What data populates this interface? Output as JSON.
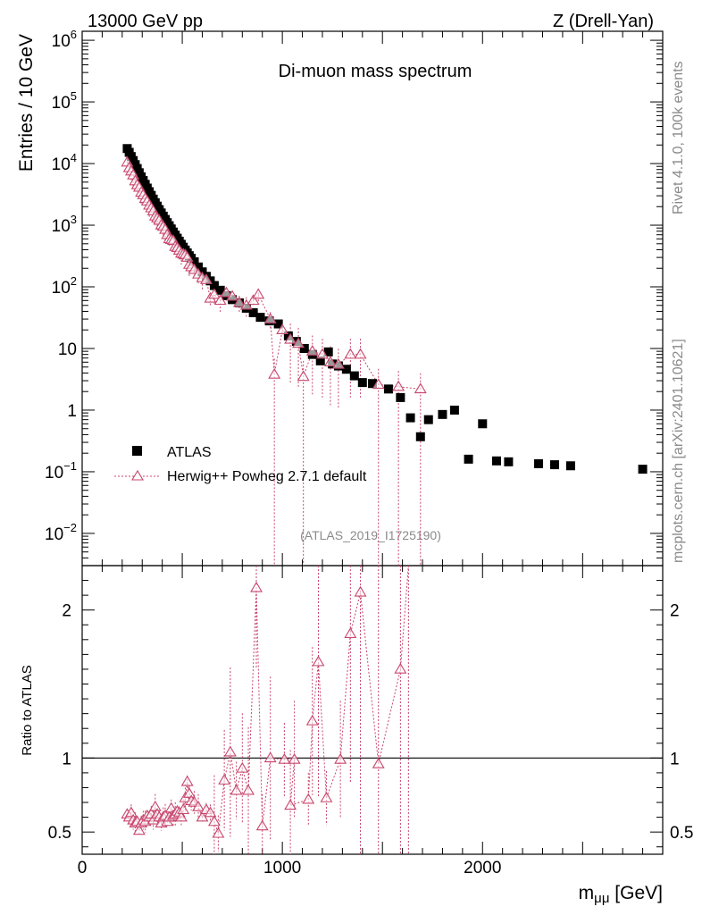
{
  "header": {
    "left": "13000 GeV pp",
    "right": "Z (Drell-Yan)"
  },
  "side_labels": {
    "top": "Rivet 4.1.0,  100k events",
    "bottom": "mcplots.cern.ch [arXiv:2401.10621]"
  },
  "colors": {
    "data": "#000000",
    "mc": "#c8466e",
    "side_text": "#8a8a8a"
  },
  "chart_data": [
    {
      "type": "scatter",
      "title": "Di-muon mass spectrum",
      "ylabel": "Entries / 10 GeV",
      "yscale": "log",
      "xlim": [
        0,
        2900
      ],
      "ylim": [
        0.003,
        1400000
      ],
      "analysis_tag": "(ATLAS_2019_I1725190)",
      "y_tick_labels": [
        "10^6",
        "10^5",
        "10^4",
        "10^3",
        "10^2",
        "10",
        "1",
        "10^-1",
        "10^-2"
      ],
      "legend_position": "center-left",
      "series": [
        {
          "name": "ATLAS",
          "marker": "square",
          "points": [
            [
              225,
              17500
            ],
            [
              235,
              15200
            ],
            [
              245,
              13000
            ],
            [
              255,
              11200
            ],
            [
              265,
              9600
            ],
            [
              275,
              8300
            ],
            [
              285,
              7100
            ],
            [
              295,
              6100
            ],
            [
              305,
              5300
            ],
            [
              315,
              4600
            ],
            [
              325,
              4000
            ],
            [
              335,
              3500
            ],
            [
              345,
              3050
            ],
            [
              355,
              2650
            ],
            [
              365,
              2320
            ],
            [
              375,
              2040
            ],
            [
              385,
              1790
            ],
            [
              395,
              1580
            ],
            [
              405,
              1400
            ],
            [
              415,
              1240
            ],
            [
              425,
              1100
            ],
            [
              435,
              980
            ],
            [
              445,
              870
            ],
            [
              455,
              775
            ],
            [
              465,
              690
            ],
            [
              475,
              615
            ],
            [
              485,
              550
            ],
            [
              495,
              490
            ],
            [
              505,
              440
            ],
            [
              515,
              395
            ],
            [
              525,
              355
            ],
            [
              535,
              320
            ],
            [
              545,
              290
            ],
            [
              560,
              255
            ],
            [
              580,
              210
            ],
            [
              600,
              175
            ],
            [
              620,
              148
            ],
            [
              640,
              125
            ],
            [
              660,
              105
            ],
            [
              690,
              88
            ],
            [
              720,
              72
            ],
            [
              750,
              62
            ],
            [
              785,
              55
            ],
            [
              820,
              45
            ],
            [
              855,
              38
            ],
            [
              890,
              32
            ],
            [
              935,
              28
            ],
            [
              980,
              25
            ],
            [
              1030,
              16
            ],
            [
              1070,
              13
            ],
            [
              1110,
              10
            ],
            [
              1150,
              8
            ],
            [
              1190,
              6.3
            ],
            [
              1230,
              8.8
            ],
            [
              1250,
              5.6
            ],
            [
              1280,
              5.2
            ],
            [
              1320,
              4.6
            ],
            [
              1360,
              3.6
            ],
            [
              1400,
              2.8
            ],
            [
              1450,
              2.7
            ],
            [
              1530,
              2.2
            ],
            [
              1590,
              1.6
            ],
            [
              1640,
              0.75
            ],
            [
              1690,
              0.37
            ],
            [
              1730,
              0.7
            ],
            [
              1800,
              0.85
            ],
            [
              1860,
              1.0
            ],
            [
              1930,
              0.16
            ],
            [
              2000,
              0.6
            ],
            [
              2070,
              0.15
            ],
            [
              2130,
              0.145
            ],
            [
              2280,
              0.135
            ],
            [
              2360,
              0.13
            ],
            [
              2440,
              0.125
            ],
            [
              2800,
              0.11
            ]
          ]
        },
        {
          "name": "Herwig++ Powheg 2.7.1 default",
          "marker": "triangle-open",
          "points": [
            [
              225,
              10500
            ],
            [
              235,
              8500
            ],
            [
              245,
              7500
            ],
            [
              255,
              6500
            ],
            [
              265,
              5200
            ],
            [
              275,
              4500
            ],
            [
              285,
              4100
            ],
            [
              295,
              3400
            ],
            [
              305,
              3100
            ],
            [
              315,
              2700
            ],
            [
              325,
              2450
            ],
            [
              335,
              2100
            ],
            [
              345,
              1900
            ],
            [
              355,
              1700
            ],
            [
              365,
              1400
            ],
            [
              375,
              1300
            ],
            [
              385,
              1200
            ],
            [
              395,
              1000
            ],
            [
              405,
              950
            ],
            [
              415,
              850
            ],
            [
              425,
              700
            ],
            [
              435,
              600
            ],
            [
              445,
              580
            ],
            [
              455,
              560
            ],
            [
              465,
              450
            ],
            [
              475,
              430
            ],
            [
              485,
              390
            ],
            [
              495,
              350
            ],
            [
              505,
              340
            ],
            [
              515,
              330
            ],
            [
              525,
              300
            ],
            [
              535,
              230
            ],
            [
              545,
              210
            ],
            [
              560,
              190
            ],
            [
              580,
              160
            ],
            [
              600,
              140
            ],
            [
              620,
              130
            ],
            [
              640,
              65
            ],
            [
              660,
              75
            ],
            [
              690,
              60
            ],
            [
              720,
              80
            ],
            [
              750,
              70
            ],
            [
              785,
              55
            ],
            [
              820,
              50
            ],
            [
              855,
              60
            ],
            [
              880,
              75
            ],
            [
              940,
              30
            ],
            [
              960,
              3.8
            ],
            [
              1000,
              20
            ],
            [
              1040,
              14
            ],
            [
              1080,
              12
            ],
            [
              1105,
              3.5
            ],
            [
              1150,
              9
            ],
            [
              1200,
              8
            ],
            [
              1240,
              6
            ],
            [
              1280,
              5.5
            ],
            [
              1340,
              8
            ],
            [
              1390,
              8
            ],
            [
              1480,
              2.6
            ],
            [
              1580,
              2.4
            ],
            [
              1690,
              2.2
            ]
          ]
        }
      ]
    },
    {
      "type": "scatter",
      "ylabel": "Ratio to ATLAS",
      "xlabel": "m_{μμ} [GeV]",
      "xlim": [
        0,
        2900
      ],
      "ylim": [
        0.35,
        2.3
      ],
      "x_ticks": [
        0,
        1000,
        2000
      ],
      "y_ticks": [
        0.5,
        1,
        2
      ],
      "reference": 1,
      "series": [
        {
          "name": "Herwig++ Powheg 2.7.1 default",
          "points": [
            [
              225,
              0.62
            ],
            [
              235,
              0.6
            ],
            [
              245,
              0.63
            ],
            [
              255,
              0.58
            ],
            [
              265,
              0.56
            ],
            [
              275,
              0.57
            ],
            [
              285,
              0.51
            ],
            [
              295,
              0.56
            ],
            [
              305,
              0.58
            ],
            [
              315,
              0.57
            ],
            [
              325,
              0.61
            ],
            [
              335,
              0.6
            ],
            [
              345,
              0.62
            ],
            [
              355,
              0.58
            ],
            [
              365,
              0.67
            ],
            [
              375,
              0.62
            ],
            [
              385,
              0.6
            ],
            [
              395,
              0.56
            ],
            [
              405,
              0.6
            ],
            [
              415,
              0.61
            ],
            [
              425,
              0.57
            ],
            [
              435,
              0.6
            ],
            [
              445,
              0.66
            ],
            [
              455,
              0.61
            ],
            [
              465,
              0.62
            ],
            [
              475,
              0.64
            ],
            [
              485,
              0.63
            ],
            [
              495,
              0.6
            ],
            [
              505,
              0.65
            ],
            [
              515,
              0.73
            ],
            [
              525,
              0.84
            ],
            [
              535,
              0.76
            ],
            [
              545,
              0.71
            ],
            [
              560,
              0.7
            ],
            [
              580,
              0.67
            ],
            [
              600,
              0.6
            ],
            [
              620,
              0.65
            ],
            [
              640,
              0.63
            ],
            [
              660,
              0.57
            ],
            [
              680,
              0.49
            ],
            [
              710,
              0.85
            ],
            [
              740,
              1.04
            ],
            [
              770,
              0.78
            ],
            [
              800,
              0.93
            ],
            [
              830,
              0.78
            ],
            [
              870,
              2.15
            ],
            [
              900,
              0.54
            ],
            [
              940,
              1.0
            ],
            [
              1010,
              0.99
            ],
            [
              1060,
              0.99
            ],
            [
              1040,
              0.68
            ],
            [
              1130,
              0.72
            ],
            [
              1150,
              1.25
            ],
            [
              1180,
              1.65
            ],
            [
              1220,
              0.73
            ],
            [
              1290,
              0.99
            ],
            [
              1340,
              1.84
            ],
            [
              1390,
              2.12
            ],
            [
              1480,
              0.96
            ],
            [
              1590,
              1.6
            ],
            [
              1630,
              2.3
            ]
          ]
        }
      ]
    }
  ]
}
